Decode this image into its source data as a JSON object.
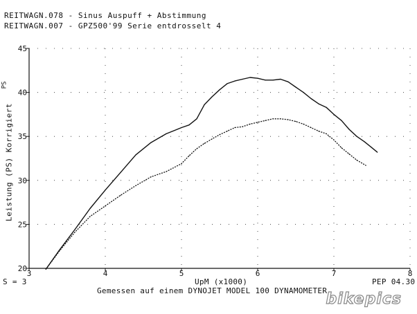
{
  "legend": {
    "line1": "REITWAGN.078 - Sinus Auspuff + Abstimmung",
    "line2": "REITWAGN.007 - GPZ500'99 Serie entdrosselt 4"
  },
  "footer": {
    "smoothing": "S = 3",
    "credit": "PEP 04.30",
    "text": "Gemessen auf einem DYNOJET MODEL 100 DYNAMOMETER"
  },
  "logo": {
    "text": "bikepics"
  },
  "chart_data": {
    "type": "line",
    "xlabel": "UpM (x1000)",
    "ylabel": "Leistung (PS) Korrigiert",
    "yunit": "PS",
    "xlim": [
      3,
      8
    ],
    "ylim": [
      20,
      45
    ],
    "xticks": [
      3,
      4,
      5,
      6,
      7,
      8
    ],
    "yticks": [
      20,
      25,
      30,
      35,
      40,
      45
    ],
    "grid": true,
    "series": [
      {
        "name": "REITWAGN.078 - Sinus Auspuff + Abstimmung",
        "x": [
          3.22,
          3.4,
          3.6,
          3.8,
          4.0,
          4.2,
          4.4,
          4.6,
          4.8,
          5.0,
          5.1,
          5.2,
          5.3,
          5.4,
          5.5,
          5.6,
          5.7,
          5.8,
          5.9,
          6.0,
          6.1,
          6.2,
          6.3,
          6.4,
          6.5,
          6.6,
          6.7,
          6.8,
          6.9,
          7.0,
          7.1,
          7.2,
          7.3,
          7.4,
          7.5,
          7.57
        ],
        "y": [
          19.9,
          22.1,
          24.4,
          26.8,
          28.9,
          30.9,
          32.9,
          34.3,
          35.3,
          36.0,
          36.3,
          37.0,
          38.6,
          39.5,
          40.3,
          41.0,
          41.3,
          41.5,
          41.7,
          41.6,
          41.4,
          41.4,
          41.5,
          41.2,
          40.6,
          40.0,
          39.3,
          38.7,
          38.3,
          37.5,
          36.8,
          35.8,
          35.0,
          34.4,
          33.7,
          33.2
        ]
      },
      {
        "name": "REITWAGN.007 - GPZ500'99 Serie entdrosselt 4",
        "x": [
          3.22,
          3.4,
          3.6,
          3.8,
          4.0,
          4.2,
          4.4,
          4.6,
          4.8,
          5.0,
          5.1,
          5.2,
          5.3,
          5.4,
          5.5,
          5.6,
          5.7,
          5.8,
          5.9,
          6.0,
          6.1,
          6.2,
          6.3,
          6.4,
          6.5,
          6.6,
          6.7,
          6.8,
          6.9,
          7.0,
          7.1,
          7.2,
          7.3,
          7.42
        ],
        "y": [
          19.9,
          22.0,
          24.1,
          25.9,
          27.1,
          28.3,
          29.4,
          30.4,
          31.0,
          31.9,
          32.8,
          33.6,
          34.2,
          34.7,
          35.2,
          35.6,
          36.0,
          36.1,
          36.4,
          36.6,
          36.8,
          37.0,
          37.0,
          36.9,
          36.7,
          36.4,
          36.0,
          35.6,
          35.3,
          34.6,
          33.7,
          33.0,
          32.3,
          31.7
        ]
      }
    ]
  }
}
